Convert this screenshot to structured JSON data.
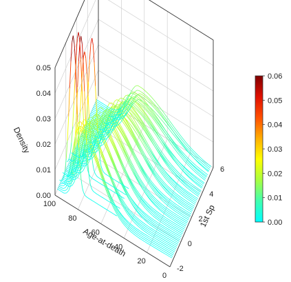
{
  "chart_data": {
    "type": "surface-lines-3d",
    "x_axis": {
      "label": "Age-at-death",
      "ticks": [
        100,
        80,
        60,
        40,
        20,
        0
      ],
      "range": [
        0,
        100
      ]
    },
    "y_axis": {
      "label": "1st Sp",
      "ticks": [
        -2,
        0,
        2,
        4,
        6
      ],
      "range": [
        -2,
        6
      ]
    },
    "z_axis": {
      "label": "Density",
      "ticks": [
        "0.00",
        "0.01",
        "0.02",
        "0.03",
        "0.04",
        "0.05"
      ],
      "range": [
        0,
        0.05
      ]
    },
    "colorbar": {
      "ticks": [
        "0.00",
        "0.01",
        "0.02",
        "0.03",
        "0.04",
        "0.05",
        "0.06"
      ],
      "range": [
        0,
        0.06
      ],
      "colors": [
        "#00ffff",
        "#40ffb0",
        "#a8ff40",
        "#ffff00",
        "#ffb000",
        "#ff5000",
        "#e01000",
        "#800000"
      ]
    },
    "grid": true,
    "series_description": "one density curve over age-at-death for each 1st Sp value; peak density about 0.03 at age near 80, tall red peaks up to about 0.06"
  }
}
